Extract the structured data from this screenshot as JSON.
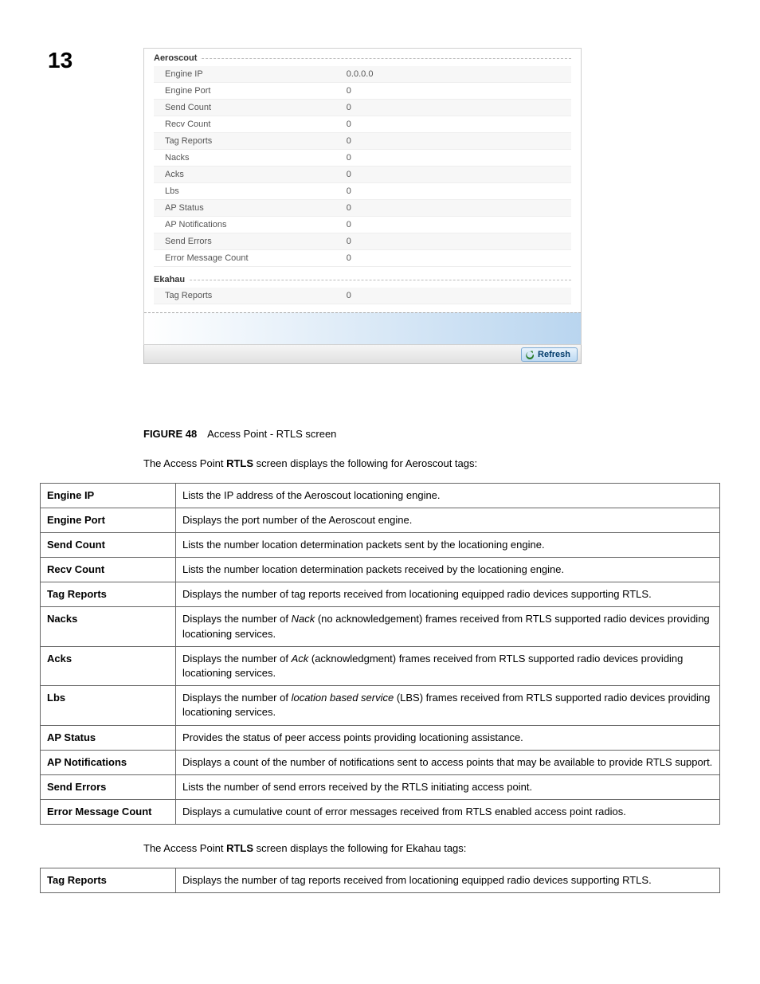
{
  "page_number": "13",
  "screenshot": {
    "sections": [
      {
        "title": "Aeroscout",
        "rows": [
          {
            "label": "Engine IP",
            "value": "0.0.0.0"
          },
          {
            "label": "Engine Port",
            "value": "0"
          },
          {
            "label": "Send Count",
            "value": "0"
          },
          {
            "label": "Recv Count",
            "value": "0"
          },
          {
            "label": "Tag Reports",
            "value": "0"
          },
          {
            "label": "Nacks",
            "value": "0"
          },
          {
            "label": "Acks",
            "value": "0"
          },
          {
            "label": "Lbs",
            "value": "0"
          },
          {
            "label": "AP Status",
            "value": "0"
          },
          {
            "label": "AP Notifications",
            "value": "0"
          },
          {
            "label": "Send Errors",
            "value": "0"
          },
          {
            "label": "Error Message Count",
            "value": "0"
          }
        ]
      },
      {
        "title": "Ekahau",
        "rows": [
          {
            "label": "Tag Reports",
            "value": "0"
          }
        ]
      }
    ],
    "refresh_label": "Refresh"
  },
  "figure": {
    "label": "FIGURE 48",
    "caption": "Access Point - RTLS screen"
  },
  "intro1_pre": "The Access Point ",
  "intro1_bold": "RTLS",
  "intro1_post": " screen displays the following for Aeroscout tags:",
  "desc_aeroscout": [
    {
      "term": "Engine IP",
      "desc": "Lists the IP address of the Aeroscout locationing engine."
    },
    {
      "term": "Engine Port",
      "desc": "Displays the port number of the Aeroscout engine."
    },
    {
      "term": "Send Count",
      "desc": "Lists the number location determination packets sent by the locationing engine."
    },
    {
      "term": "Recv Count",
      "desc": "Lists the number location determination packets received by the locationing engine."
    },
    {
      "term": "Tag Reports",
      "desc": "Displays the number of tag reports received from locationing equipped radio devices supporting RTLS."
    },
    {
      "term": "Nacks",
      "desc_pre": "Displays the number of ",
      "desc_it": "Nack",
      "desc_post": " (no acknowledgement) frames received from RTLS supported radio devices providing locationing services."
    },
    {
      "term": "Acks",
      "desc_pre": "Displays the number of ",
      "desc_it": "Ack",
      "desc_post": " (acknowledgment) frames received from RTLS supported radio devices providing locationing services."
    },
    {
      "term": "Lbs",
      "desc_pre": "Displays the number of ",
      "desc_it": "location based service",
      "desc_post": " (LBS) frames received from RTLS supported radio devices providing locationing services."
    },
    {
      "term": "AP Status",
      "desc": "Provides the status of peer access points providing locationing assistance."
    },
    {
      "term": "AP Notifications",
      "desc": "Displays a count of the number of notifications sent to access points that may be available to provide RTLS support."
    },
    {
      "term": "Send Errors",
      "desc": "Lists the number of send errors received by the RTLS initiating access point."
    },
    {
      "term": "Error Message Count",
      "desc": "Displays a cumulative count of error messages received from RTLS enabled access point radios."
    }
  ],
  "intro2_pre": "The Access Point ",
  "intro2_bold": "RTLS",
  "intro2_post": " screen displays the following for Ekahau tags:",
  "desc_ekahau": [
    {
      "term": "Tag Reports",
      "desc": "Displays the number of tag reports received from locationing equipped radio devices supporting RTLS."
    }
  ],
  "colors": {
    "border": "#666666",
    "panel_border": "#d0d0d0",
    "gradient_end": "#b9d5ef",
    "refresh_text": "#003a6a"
  }
}
